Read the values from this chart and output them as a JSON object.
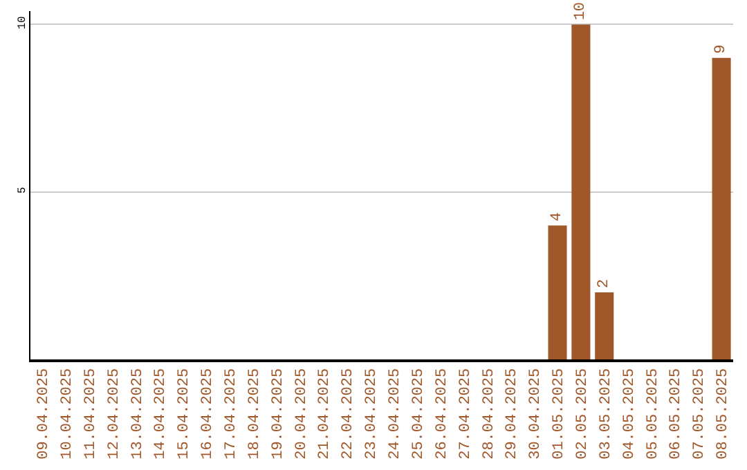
{
  "chart_data": {
    "type": "bar",
    "categories": [
      "09.04.2025",
      "10.04.2025",
      "11.04.2025",
      "12.04.2025",
      "13.04.2025",
      "14.04.2025",
      "15.04.2025",
      "16.04.2025",
      "17.04.2025",
      "18.04.2025",
      "19.04.2025",
      "20.04.2025",
      "21.04.2025",
      "22.04.2025",
      "23.04.2025",
      "24.04.2025",
      "25.04.2025",
      "26.04.2025",
      "27.04.2025",
      "28.04.2025",
      "29.04.2025",
      "30.04.2025",
      "01.05.2025",
      "02.05.2025",
      "03.05.2025",
      "04.05.2025",
      "05.05.2025",
      "06.05.2025",
      "07.05.2025",
      "08.05.2025"
    ],
    "values": [
      0,
      0,
      0,
      0,
      0,
      0,
      0,
      0,
      0,
      0,
      0,
      0,
      0,
      0,
      0,
      0,
      0,
      0,
      0,
      0,
      0,
      0,
      4,
      10,
      2,
      0,
      0,
      0,
      0,
      9
    ],
    "value_labels": [
      null,
      null,
      null,
      null,
      null,
      null,
      null,
      null,
      null,
      null,
      null,
      null,
      null,
      null,
      null,
      null,
      null,
      null,
      null,
      null,
      null,
      null,
      "4",
      "10",
      "2",
      null,
      null,
      null,
      null,
      "9"
    ],
    "color": "#a0582a",
    "ylim": [
      0,
      10.4
    ],
    "yticks": [
      5,
      10
    ],
    "grid": "y"
  }
}
